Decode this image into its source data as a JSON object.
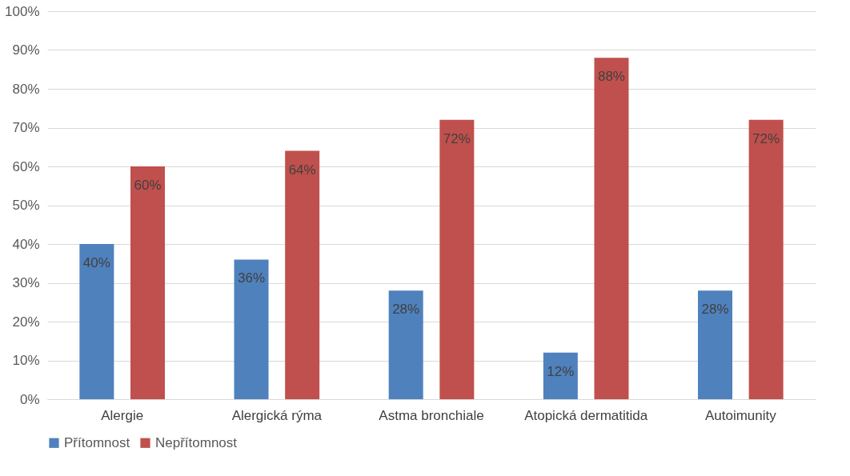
{
  "chart_data": {
    "type": "bar",
    "categories": [
      "Alergie",
      "Alergická rýma",
      "Astma bronchiale",
      "Atopická dermatitida",
      "Autoimunity"
    ],
    "series": [
      {
        "name": "Přítomnost",
        "color": "#4f81bd",
        "values": [
          40,
          36,
          28,
          12,
          28
        ],
        "value_labels": [
          "40%",
          "36%",
          "28%",
          "12%",
          "28%"
        ]
      },
      {
        "name": "Nepřítomnost",
        "color": "#c0504d",
        "values": [
          60,
          64,
          72,
          88,
          72
        ],
        "value_labels": [
          "60%",
          "64%",
          "72%",
          "88%",
          "72%"
        ]
      }
    ],
    "ylim": [
      0,
      100
    ],
    "yticks": [
      {
        "value": 0,
        "label": "0%"
      },
      {
        "value": 10,
        "label": "10%"
      },
      {
        "value": 20,
        "label": "20%"
      },
      {
        "value": 30,
        "label": "30%"
      },
      {
        "value": 40,
        "label": "40%"
      },
      {
        "value": 50,
        "label": "50%"
      },
      {
        "value": 60,
        "label": "60%"
      },
      {
        "value": 70,
        "label": "70%"
      },
      {
        "value": 80,
        "label": "80%"
      },
      {
        "value": 90,
        "label": "90%"
      },
      {
        "value": 100,
        "label": "100%"
      }
    ],
    "grid": "y",
    "legend": "bottom"
  }
}
